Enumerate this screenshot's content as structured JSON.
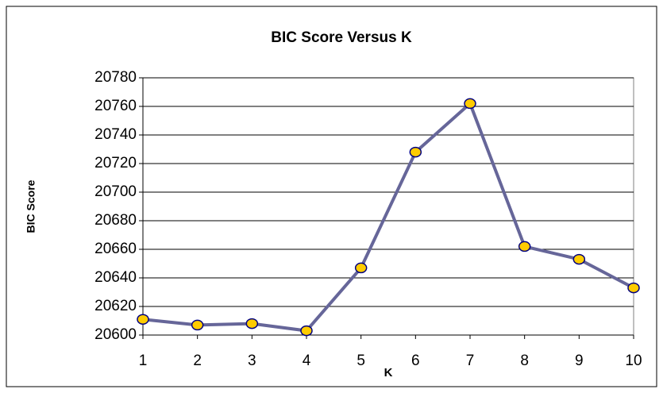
{
  "chart_data": {
    "type": "line",
    "title": "BIC Score Versus K",
    "x_label": "K",
    "y_label": "BIC Score",
    "x": [
      1,
      2,
      3,
      4,
      5,
      6,
      7,
      8,
      9,
      10
    ],
    "series": [
      {
        "name": "BIC Score",
        "color": "#666699",
        "marker_color": "#ffcc00",
        "values": [
          20611,
          20607,
          20608,
          20603,
          20647,
          20728,
          20762,
          20662,
          20653,
          20633
        ]
      }
    ],
    "xlim": [
      1,
      10
    ],
    "xticks": [
      1,
      2,
      3,
      4,
      5,
      6,
      7,
      8,
      9,
      10
    ],
    "ylim": [
      20600,
      20780
    ],
    "yticks": [
      20600,
      20620,
      20640,
      20660,
      20680,
      20700,
      20720,
      20740,
      20760,
      20780
    ],
    "grid": true
  }
}
